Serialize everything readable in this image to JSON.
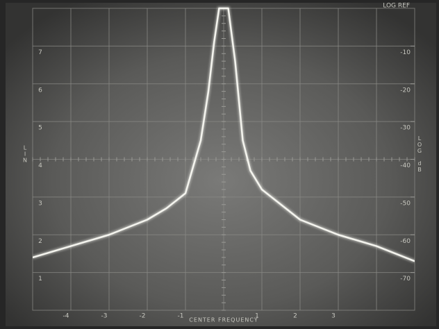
{
  "chart_data": {
    "type": "line",
    "left_axis_label": "LIN",
    "right_axis_label": "LOG dB",
    "reference_label": "LOG REF",
    "x": [
      -5,
      -4,
      -3,
      -2,
      -1.5,
      -1,
      -0.8,
      -0.6,
      -0.4,
      -0.25,
      -0.12,
      0.12,
      0.3,
      0.5,
      0.7,
      1,
      1.5,
      2,
      3,
      4,
      5
    ],
    "series": [
      {
        "color": "#f4f4ee",
        "values": [
          1.4,
          1.7,
          2.0,
          2.4,
          2.7,
          3.1,
          3.8,
          4.5,
          5.8,
          7.1,
          8,
          8,
          6.6,
          4.5,
          3.7,
          3.2,
          2.8,
          2.4,
          2.0,
          1.7,
          1.3
        ]
      }
    ],
    "xlim": [
      -5,
      5
    ],
    "xticks": [
      -4,
      -3,
      -2,
      -1,
      {
        "value": 0,
        "label": "CENTER FREQUENCY"
      },
      1,
      2,
      3
    ],
    "ylim": [
      0,
      8
    ],
    "yticks": [
      1,
      2,
      3,
      4,
      5,
      6,
      7
    ],
    "y2lim": [
      -80,
      0
    ],
    "y2ticks": [
      -70,
      -60,
      -50,
      -40,
      -30,
      -20,
      -10
    ],
    "grid": true
  }
}
